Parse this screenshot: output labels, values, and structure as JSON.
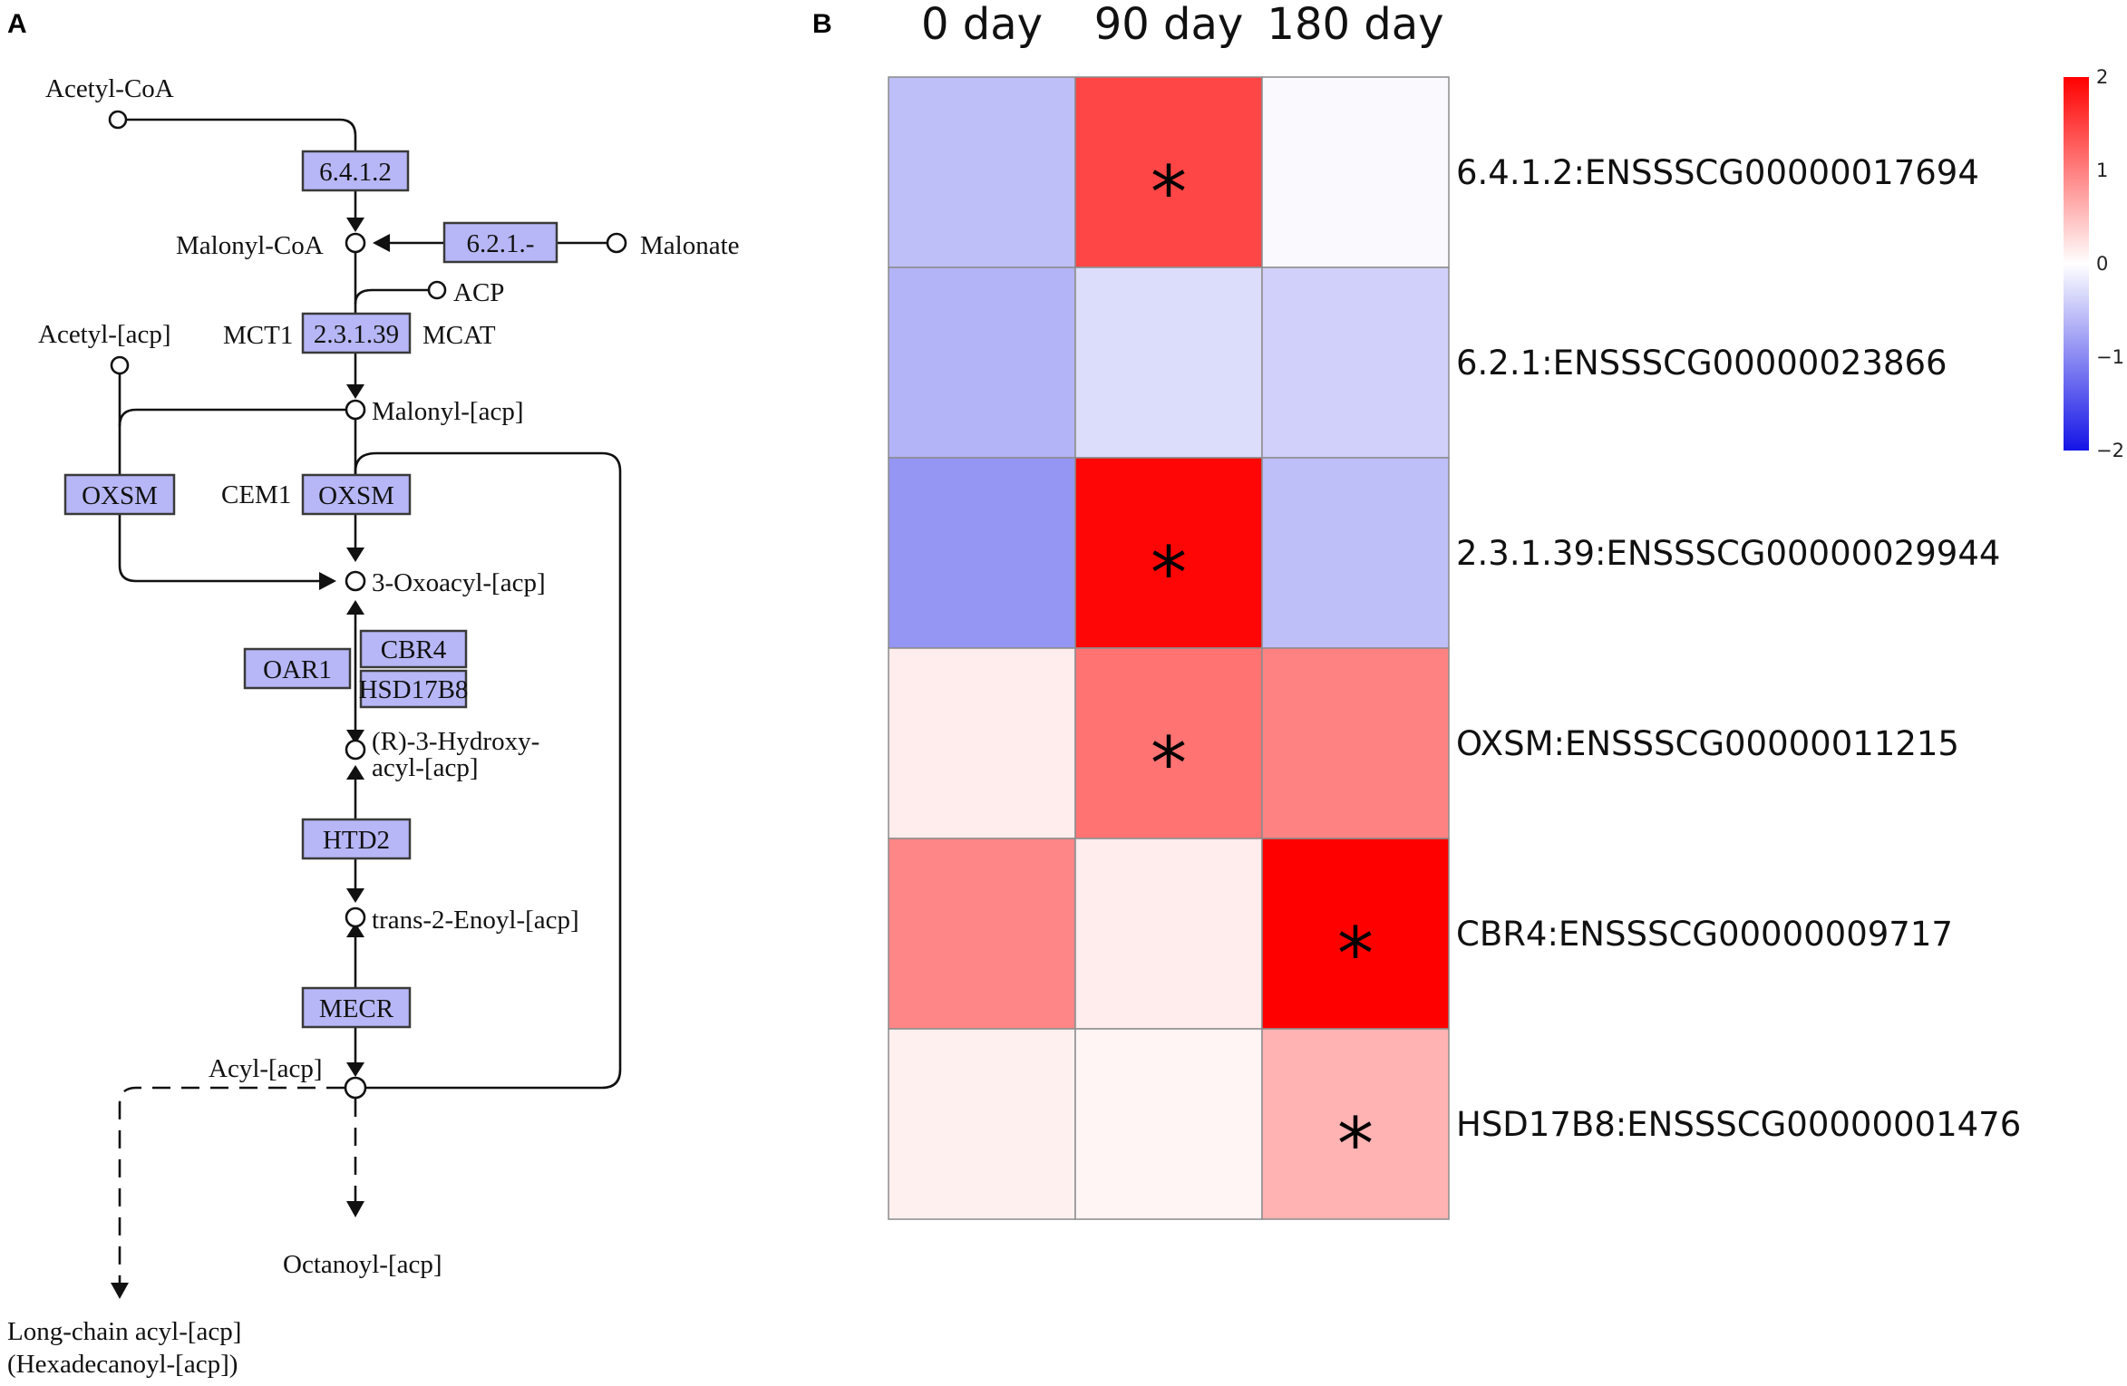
{
  "panels": {
    "a": "A",
    "b": "B"
  },
  "pathway": {
    "compounds": {
      "acetyl_coa": "Acetyl-CoA",
      "malonyl_coa": "Malonyl-CoA",
      "malonate": "Malonate",
      "acp": "ACP",
      "acetyl_acp": "Acetyl-[acp]",
      "malonyl_acp": "Malonyl-[acp]",
      "oxoacyl_acp": "3-Oxoacyl-[acp]",
      "hydroxyacyl_acp_1": "(R)-3-Hydroxy-",
      "hydroxyacyl_acp_2": "acyl-[acp]",
      "enoyl_acp": "trans-2-Enoyl-[acp]",
      "acyl_acp": "Acyl-[acp]",
      "octanoyl_acp": "Octanoyl-[acp]",
      "long_chain_1": "Long-chain acyl-[acp]",
      "long_chain_2": "(Hexadecanoyl-[acp])"
    },
    "enzymes": {
      "e6412": "6.4.1.2",
      "e621": "6.2.1.-",
      "e23139": "2.3.1.39",
      "oxsm_left": "OXSM",
      "oxsm_main": "OXSM",
      "cbr4": "CBR4",
      "hsd17b8": "HSD17B8",
      "oar1": "OAR1",
      "htd2": "HTD2",
      "mecr": "MECR"
    },
    "side_labels": {
      "mct1": "MCT1",
      "mcat": "MCAT",
      "cem1": "CEM1"
    }
  },
  "chart_data": {
    "type": "heatmap",
    "columns": [
      "0 day",
      "90 day",
      "180 day"
    ],
    "rows": [
      "6.4.1.2:ENSSSCG00000017694",
      "6.2.1:ENSSSCG00000023866",
      "2.3.1.39:ENSSSCG00000029944",
      "OXSM:ENSSSCG00000011215",
      "CBR4:ENSSSCG00000009717",
      "HSD17B8:ENSSSCG00000001476"
    ],
    "values": [
      [
        -0.55,
        1.45,
        -0.05
      ],
      [
        -0.65,
        -0.3,
        -0.4
      ],
      [
        -0.9,
        1.95,
        -0.55
      ],
      [
        0.15,
        1.1,
        0.98
      ],
      [
        0.95,
        0.15,
        2.0
      ],
      [
        0.12,
        0.08,
        0.6
      ]
    ],
    "significant": [
      [
        false,
        true,
        false
      ],
      [
        false,
        false,
        false
      ],
      [
        false,
        true,
        false
      ],
      [
        false,
        true,
        false
      ],
      [
        false,
        false,
        true
      ],
      [
        false,
        false,
        true
      ]
    ],
    "marker": "*",
    "colorbar": {
      "range": [
        -2,
        2
      ],
      "ticks": [
        "2",
        "1",
        "0",
        "−1",
        "−2"
      ],
      "low_color": "#1414e6",
      "mid_color": "#ffffff",
      "high_color": "#ff0000"
    }
  }
}
